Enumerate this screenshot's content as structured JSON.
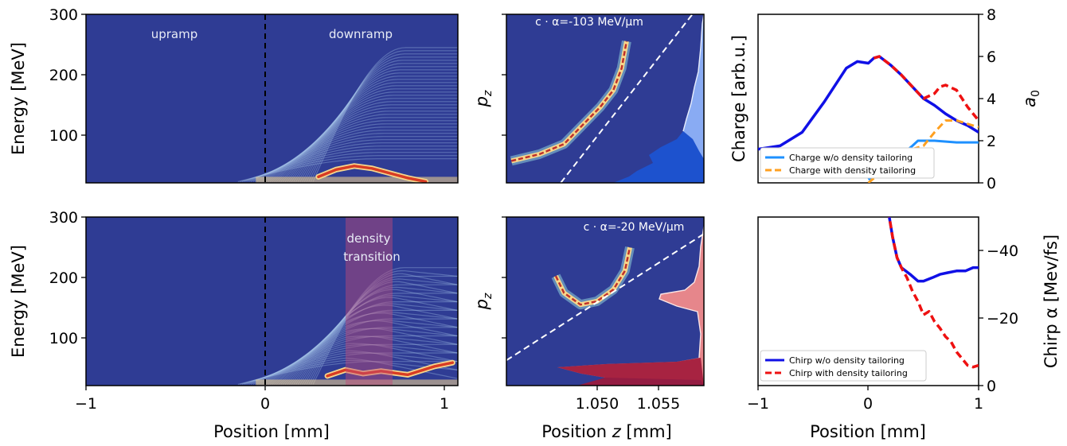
{
  "colors": {
    "background_map": "#2f3c94",
    "hot": "#d83c24",
    "warm": "#f6d78c",
    "charge_wo": "#1e90ff",
    "charge_with": "#ffa020",
    "chirp_wo": "#1010e6",
    "chirp_with": "#ee1111"
  },
  "chart_data": [
    {
      "id": "energy_top",
      "type": "heatmap",
      "xlabel": "Position [mm]",
      "ylabel": "Energy [MeV]",
      "xlim": [
        -1,
        1.08
      ],
      "ylim": [
        20,
        300
      ],
      "yticks": [
        100,
        200,
        300
      ],
      "xticks": [],
      "vline_x": 0,
      "region_labels": [
        "upramp",
        "downramp"
      ],
      "hot_curve": {
        "x": [
          0.3,
          0.4,
          0.5,
          0.6,
          0.7,
          0.8,
          0.9
        ],
        "y": [
          30,
          42,
          48,
          44,
          36,
          28,
          22
        ]
      }
    },
    {
      "id": "energy_bottom",
      "type": "heatmap",
      "xlabel": "Position [mm]",
      "ylabel": "Energy [MeV]",
      "xlim": [
        -1,
        1.08
      ],
      "ylim": [
        20,
        300
      ],
      "yticks": [
        100,
        200,
        300
      ],
      "xticks": [
        -1,
        0,
        1
      ],
      "vline_x": 0,
      "shaded_region": {
        "x": [
          0.45,
          0.72
        ],
        "label_line1": "density",
        "label_line2": "transition"
      },
      "hot_curve": {
        "x": [
          0.35,
          0.45,
          0.55,
          0.65,
          0.8,
          0.95,
          1.05
        ],
        "y": [
          36,
          46,
          40,
          44,
          38,
          52,
          58
        ]
      }
    },
    {
      "id": "phase_top",
      "type": "scatter",
      "ylabel": "p_z",
      "xlim": [
        1.0455,
        1.0575
      ],
      "xticks": [],
      "annotation": "c · α=-103 MeV/μm",
      "beam": {
        "x": [
          1.0458,
          1.0475,
          1.049,
          1.05,
          1.0512,
          1.052,
          1.0525,
          1.0528
        ],
        "y": [
          0.13,
          0.17,
          0.23,
          0.33,
          0.45,
          0.55,
          0.68,
          0.84
        ]
      },
      "dashed_line": {
        "x": [
          1.0488,
          1.0568
        ],
        "y": [
          0.0,
          1.0
        ]
      }
    },
    {
      "id": "phase_bottom",
      "type": "scatter",
      "ylabel": "p_z",
      "xlim": [
        1.0455,
        1.0575
      ],
      "xticks": [
        1.05,
        1.055
      ],
      "xlabel": "Position z [mm]",
      "annotation": "c · α=-20 MeV/μm",
      "beam": {
        "x": [
          1.0485,
          1.049,
          1.05,
          1.051,
          1.052,
          1.0527,
          1.053
        ],
        "y": [
          0.65,
          0.55,
          0.48,
          0.5,
          0.57,
          0.68,
          0.82
        ]
      },
      "dashed_line": {
        "x": [
          1.0455,
          1.0575
        ],
        "y": [
          0.15,
          0.9
        ]
      }
    },
    {
      "id": "charge",
      "type": "line",
      "ylabel_left": "Charge [arb.u.]",
      "ylabel_right": "a_0",
      "xlim": [
        -1,
        1
      ],
      "ylim_right": [
        0,
        8
      ],
      "yticks_right": [
        0,
        2,
        4,
        6,
        8
      ],
      "series": [
        {
          "name": "Charge w/o density tailoring",
          "x": [
            -1,
            -0.8,
            -0.6,
            -0.4,
            -0.2,
            -0.1,
            0.0,
            0.05,
            0.1,
            0.2,
            0.3,
            0.4,
            0.5,
            0.6,
            0.7,
            0.8,
            0.9,
            1.0
          ],
          "y": [
            0.2,
            0.22,
            0.3,
            0.48,
            0.68,
            0.72,
            0.71,
            0.74,
            0.75,
            0.7,
            0.64,
            0.57,
            0.5,
            0.46,
            0.41,
            0.37,
            0.34,
            0.3
          ]
        },
        {
          "name": "Charge with density tailoring",
          "x": [
            0.05,
            0.1,
            0.2,
            0.3,
            0.4,
            0.5,
            0.6,
            0.65,
            0.7,
            0.8,
            0.9,
            1.0
          ],
          "y": [
            0.74,
            0.75,
            0.7,
            0.64,
            0.57,
            0.5,
            0.53,
            0.57,
            0.58,
            0.55,
            0.45,
            0.37
          ]
        },
        {
          "name": "a0 w/o",
          "x": [
            0.0,
            0.2,
            0.4,
            0.45,
            0.6,
            0.8,
            1.0
          ],
          "y": [
            0.02,
            0.11,
            0.22,
            0.25,
            0.25,
            0.24,
            0.24
          ]
        },
        {
          "name": "a0 with",
          "x": [
            0.0,
            0.2,
            0.4,
            0.5,
            0.6,
            0.7,
            0.8,
            1.0
          ],
          "y": [
            0.0,
            0.11,
            0.2,
            0.22,
            0.3,
            0.37,
            0.37,
            0.33
          ]
        }
      ]
    },
    {
      "id": "chirp",
      "type": "line",
      "xlabel": "Position [mm]",
      "ylabel_right": "Chirp α [Mev/fs]",
      "xlim": [
        -1,
        1
      ],
      "xticks": [
        -1,
        0,
        1
      ],
      "ylim": [
        0,
        -50
      ],
      "yticks": [
        0,
        -20,
        -40
      ],
      "series": [
        {
          "name": "Chirp w/o density tailoring",
          "x": [
            0.18,
            0.22,
            0.26,
            0.3,
            0.38,
            0.45,
            0.5,
            0.58,
            0.65,
            0.72,
            0.8,
            0.88,
            0.95,
            1.0
          ],
          "y": [
            -52,
            -44,
            -38,
            -35,
            -33,
            -31,
            -31,
            -32,
            -33,
            -33.5,
            -34,
            -34,
            -35,
            -35
          ]
        },
        {
          "name": "Chirp with density tailoring",
          "x": [
            0.18,
            0.22,
            0.26,
            0.3,
            0.35,
            0.4,
            0.45,
            0.5,
            0.55,
            0.6,
            0.65,
            0.7,
            0.75,
            0.8,
            0.85,
            0.9,
            0.95,
            1.0
          ],
          "y": [
            -52,
            -44,
            -38,
            -35,
            -32,
            -28,
            -25,
            -21,
            -22,
            -19,
            -17,
            -14.5,
            -13,
            -10,
            -8,
            -6,
            -5.5,
            -6
          ]
        }
      ]
    }
  ]
}
